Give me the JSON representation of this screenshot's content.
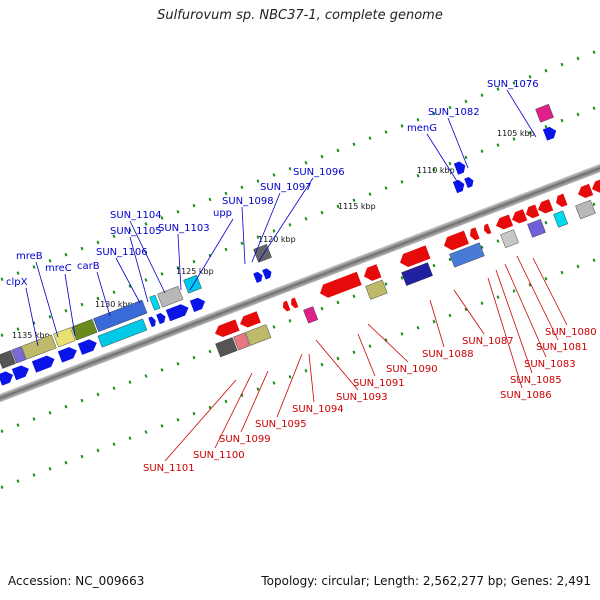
{
  "title": "Sulfurovum sp. NBC37-1, complete genome",
  "footer": {
    "accession": "Accession: NC_009663",
    "summary": "Topology: circular; Length: 2,562,277 bp; Genes: 2,491"
  },
  "colors": {
    "forward_label": "#0000cc",
    "reverse_label": "#cc0000",
    "forward_gene": "#0a14e6",
    "reverse_gene": "#e60a0a",
    "tick": "#1a8a1a",
    "backbone": "#7a7a7a"
  },
  "scale_ticks": [
    {
      "label": "1135 kbp",
      "pos": 1135
    },
    {
      "label": "1130 kbp",
      "pos": 1130
    },
    {
      "label": "1125 kbp",
      "pos": 1125
    },
    {
      "label": "1120 kbp",
      "pos": 1120
    },
    {
      "label": "1115 kbp",
      "pos": 1115
    },
    {
      "label": "1110 kbp",
      "pos": 1110
    },
    {
      "label": "1105 kbp",
      "pos": 1105
    }
  ],
  "forward_labels": [
    {
      "text": "clpX"
    },
    {
      "text": "mreB"
    },
    {
      "text": "mreC"
    },
    {
      "text": "carB"
    },
    {
      "text": "SUN_1106"
    },
    {
      "text": "SUN_1105"
    },
    {
      "text": "SUN_1104"
    },
    {
      "text": "SUN_1103"
    },
    {
      "text": "upp"
    },
    {
      "text": "SUN_1098"
    },
    {
      "text": "SUN_1097"
    },
    {
      "text": "SUN_1096"
    },
    {
      "text": "menG"
    },
    {
      "text": "SUN_1082"
    },
    {
      "text": "SUN_1076"
    }
  ],
  "reverse_labels": [
    {
      "text": "SUN_1101"
    },
    {
      "text": "SUN_1100"
    },
    {
      "text": "SUN_1099"
    },
    {
      "text": "SUN_1095"
    },
    {
      "text": "SUN_1094"
    },
    {
      "text": "SUN_1093"
    },
    {
      "text": "SUN_1091"
    },
    {
      "text": "SUN_1090"
    },
    {
      "text": "SUN_1088"
    },
    {
      "text": "SUN_1087"
    },
    {
      "text": "SUN_1086"
    },
    {
      "text": "SUN_1085"
    },
    {
      "text": "SUN_1083"
    },
    {
      "text": "SUN_1081"
    },
    {
      "text": "SUN_1080"
    }
  ]
}
